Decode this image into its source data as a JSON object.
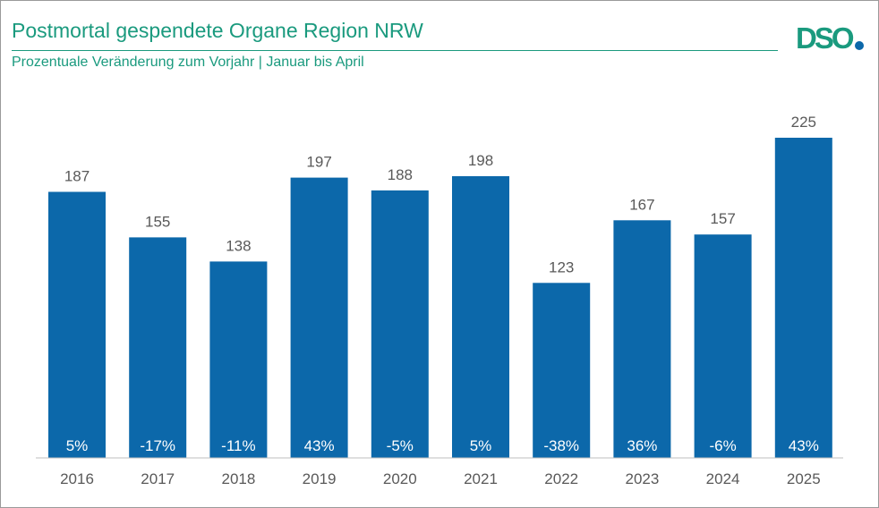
{
  "header": {
    "title": "Postmortal gespendete Organe Region NRW",
    "subtitle": "Prozentuale Veränderung zum Vorjahr | Januar bis April",
    "logo_text": "DSO"
  },
  "colors": {
    "bar": "#0c68aa",
    "accent": "#1a9a7e",
    "label": "#595959",
    "logo_dot": "#0c68aa"
  },
  "chart_data": {
    "type": "bar",
    "title": "Postmortal gespendete Organe Region NRW",
    "subtitle": "Prozentuale Veränderung zum Vorjahr | Januar bis April",
    "categories": [
      "2016",
      "2017",
      "2018",
      "2019",
      "2020",
      "2021",
      "2022",
      "2023",
      "2024",
      "2025"
    ],
    "values": [
      187,
      155,
      138,
      197,
      188,
      198,
      123,
      167,
      157,
      225
    ],
    "change_labels": [
      "5%",
      "-17%",
      "-11%",
      "43%",
      "-5%",
      "5%",
      "-38%",
      "36%",
      "-6%",
      "43%"
    ],
    "ylim": [
      0,
      225
    ],
    "grid": false,
    "legend": "none"
  }
}
